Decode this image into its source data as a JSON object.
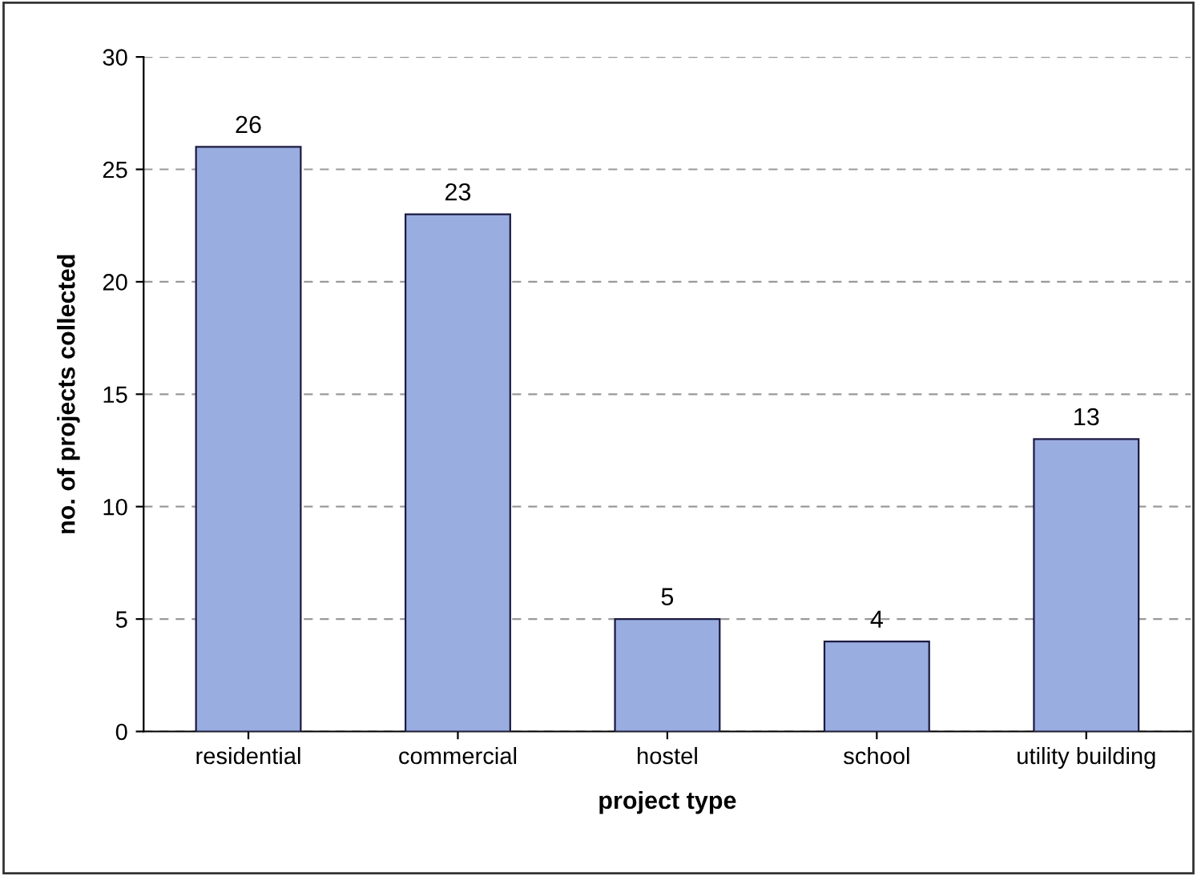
{
  "chart_data": {
    "type": "bar",
    "xlabel": "project type",
    "ylabel": "no. of projects collected",
    "categories": [
      "residential",
      "commercial",
      "hostel",
      "school",
      "utility building"
    ],
    "values": [
      26,
      23,
      5,
      4,
      13
    ],
    "color": "#9aade0",
    "ylim": [
      0,
      30
    ],
    "yticks": [
      0,
      5,
      10,
      15,
      20,
      25,
      30
    ],
    "grid": "y",
    "data_labels": true,
    "legend": false
  }
}
